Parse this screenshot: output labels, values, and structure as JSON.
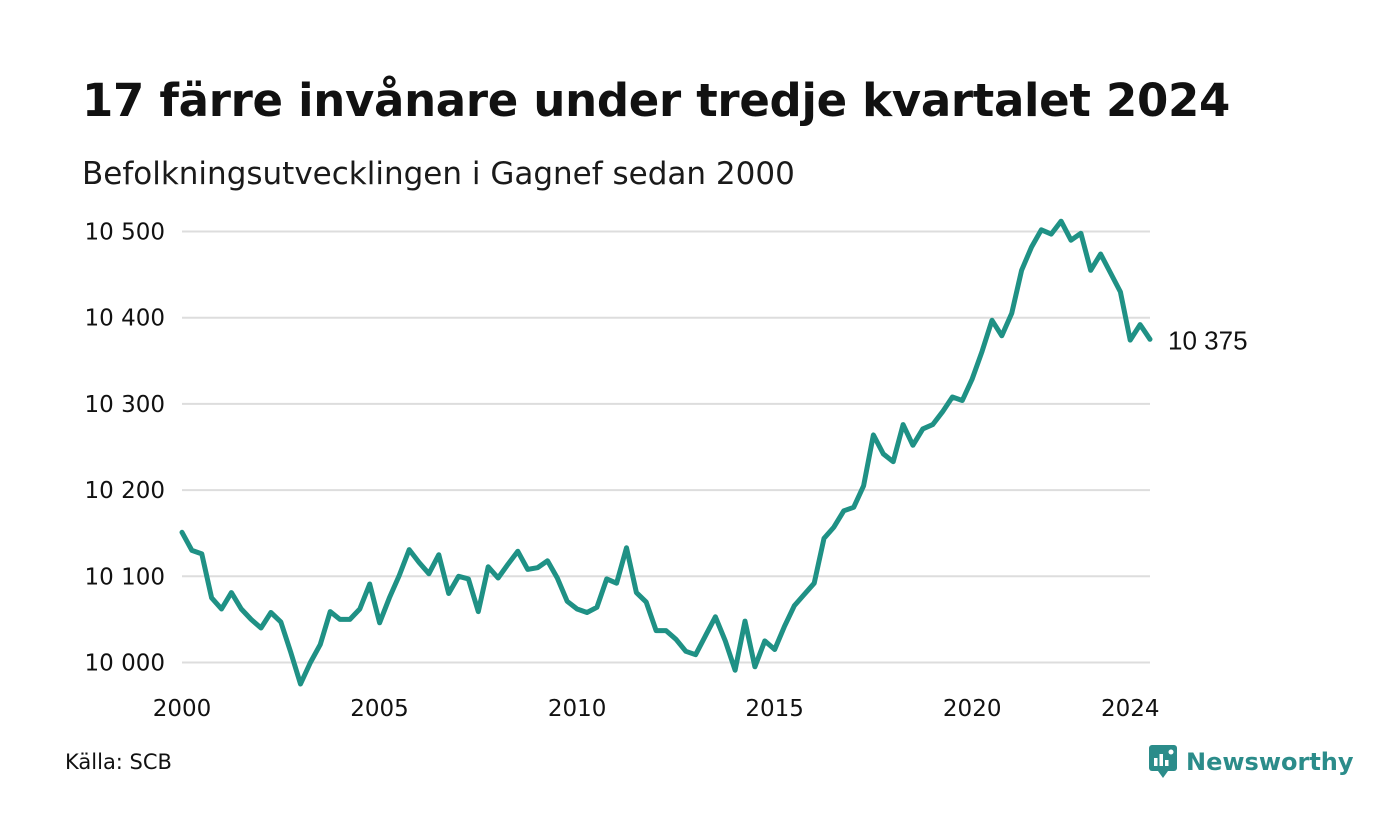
{
  "title": "17 färre invånare under tredje kvartalet 2024",
  "subtitle": "Befolkningsutvecklingen i Gagnef sedan 2000",
  "source": "Källa: SCB",
  "brand": {
    "name": "Newsworthy",
    "icon": "newsworthy-logo-icon",
    "color": "#2b8c8a"
  },
  "chart_data": {
    "type": "line",
    "title": "17 färre invånare under tredje kvartalet 2024",
    "xlabel": "",
    "ylabel": "",
    "grid": true,
    "legend": "none",
    "line_color": "#1f9185",
    "ylim": [
      9975,
      10525
    ],
    "xlim": [
      2000,
      2024.5
    ],
    "yticks": [
      10000,
      10100,
      10200,
      10300,
      10400,
      10500
    ],
    "ytick_labels": [
      "10 000",
      "10 100",
      "10 200",
      "10 300",
      "10 400",
      "10 500"
    ],
    "xticks": [
      2000,
      2005,
      2010,
      2015,
      2020,
      2024
    ],
    "xtick_labels": [
      "2000",
      "2005",
      "2010",
      "2015",
      "2020",
      "2024"
    ],
    "end_label": "10 375",
    "series": [
      {
        "x_start": 2000,
        "x_step": 0.25,
        "values": [
          10151,
          10130,
          10126,
          10075,
          10062,
          10081,
          10062,
          10050,
          10040,
          10058,
          10047,
          10012,
          9975,
          10000,
          10021,
          10059,
          10050,
          10050,
          10062,
          10091,
          10046,
          10075,
          10101,
          10131,
          10116,
          10103,
          10125,
          10080,
          10100,
          10097,
          10059,
          10111,
          10098,
          10114,
          10129,
          10108,
          10110,
          10118,
          10098,
          10071,
          10062,
          10058,
          10064,
          10097,
          10092,
          10133,
          10081,
          10070,
          10037,
          10037,
          10027,
          10013,
          10009,
          10031,
          10053,
          10025,
          9991,
          10048,
          9995,
          10025,
          10015,
          10042,
          10066,
          10079,
          10092,
          10144,
          10157,
          10176,
          10180,
          10205,
          10264,
          10242,
          10233,
          10276,
          10252,
          10271,
          10276,
          10291,
          10308,
          10304,
          10329,
          10361,
          10397,
          10379,
          10405,
          10455,
          10482,
          10502,
          10497,
          10512,
          10490,
          10498,
          10455,
          10474,
          10452,
          10430,
          10374,
          10392,
          10375
        ]
      }
    ]
  }
}
